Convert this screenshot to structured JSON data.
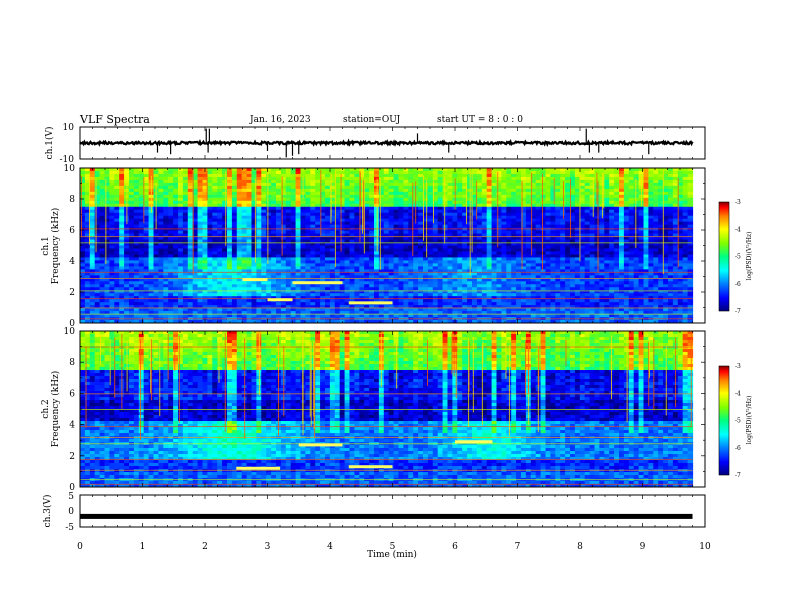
{
  "header": {
    "title": "VLF Spectra",
    "date": "Jan. 16, 2023",
    "station": "station=OUJ",
    "start_time": "start UT =  8 : 0 : 0"
  },
  "colors": {
    "waveform": "#000000",
    "colormap": [
      "#00007f",
      "#0000ff",
      "#0080ff",
      "#00ffff",
      "#00ff80",
      "#80ff00",
      "#ffff00",
      "#ff8000",
      "#ff0000",
      "#7f0000"
    ]
  },
  "chart_data": [
    {
      "type": "line",
      "id": "waveform-ch1",
      "ylabel": "ch.1(V)",
      "ylim": [
        -10,
        10
      ],
      "yticks": [
        "10",
        "-10"
      ],
      "description_value_mean": 0,
      "xlim": [
        0,
        10
      ]
    },
    {
      "type": "heatmap",
      "id": "spectrogram-ch1",
      "ylabel_channel": "ch.1",
      "ylabel": "Frequency (kHz)",
      "ylim": [
        0,
        10
      ],
      "yticks": [
        "0",
        "2",
        "4",
        "6",
        "8",
        "10"
      ],
      "xlim": [
        0,
        10
      ],
      "data_extent_min": 9.8,
      "colorbar": {
        "label": "log(PSD)(V²/Hz)",
        "range": [
          -7,
          -3
        ],
        "ticks": [
          "-3",
          "-4",
          "-5",
          "-6",
          "-7"
        ]
      }
    },
    {
      "type": "heatmap",
      "id": "spectrogram-ch2",
      "ylabel_channel": "ch.2",
      "ylabel": "Frequency (kHz)",
      "ylim": [
        0,
        10
      ],
      "yticks": [
        "0",
        "2",
        "4",
        "6",
        "8",
        "10"
      ],
      "xlim": [
        0,
        10
      ],
      "data_extent_min": 9.8,
      "colorbar": {
        "label": "log(PSD)(V²/Hz)",
        "range": [
          -7,
          -3
        ],
        "ticks": [
          "-3",
          "-4",
          "-5",
          "-6",
          "-7"
        ]
      }
    },
    {
      "type": "line",
      "id": "waveform-ch3",
      "ylabel": "ch.3(V)",
      "ylim": [
        -5,
        5
      ],
      "yticks": [
        "5",
        "0",
        "-5"
      ],
      "value": -1.7,
      "xlim": [
        0,
        10
      ],
      "xlabel": "Time (min)",
      "xticks": [
        "0",
        "1",
        "2",
        "3",
        "4",
        "5",
        "6",
        "7",
        "8",
        "9",
        "10"
      ]
    }
  ]
}
